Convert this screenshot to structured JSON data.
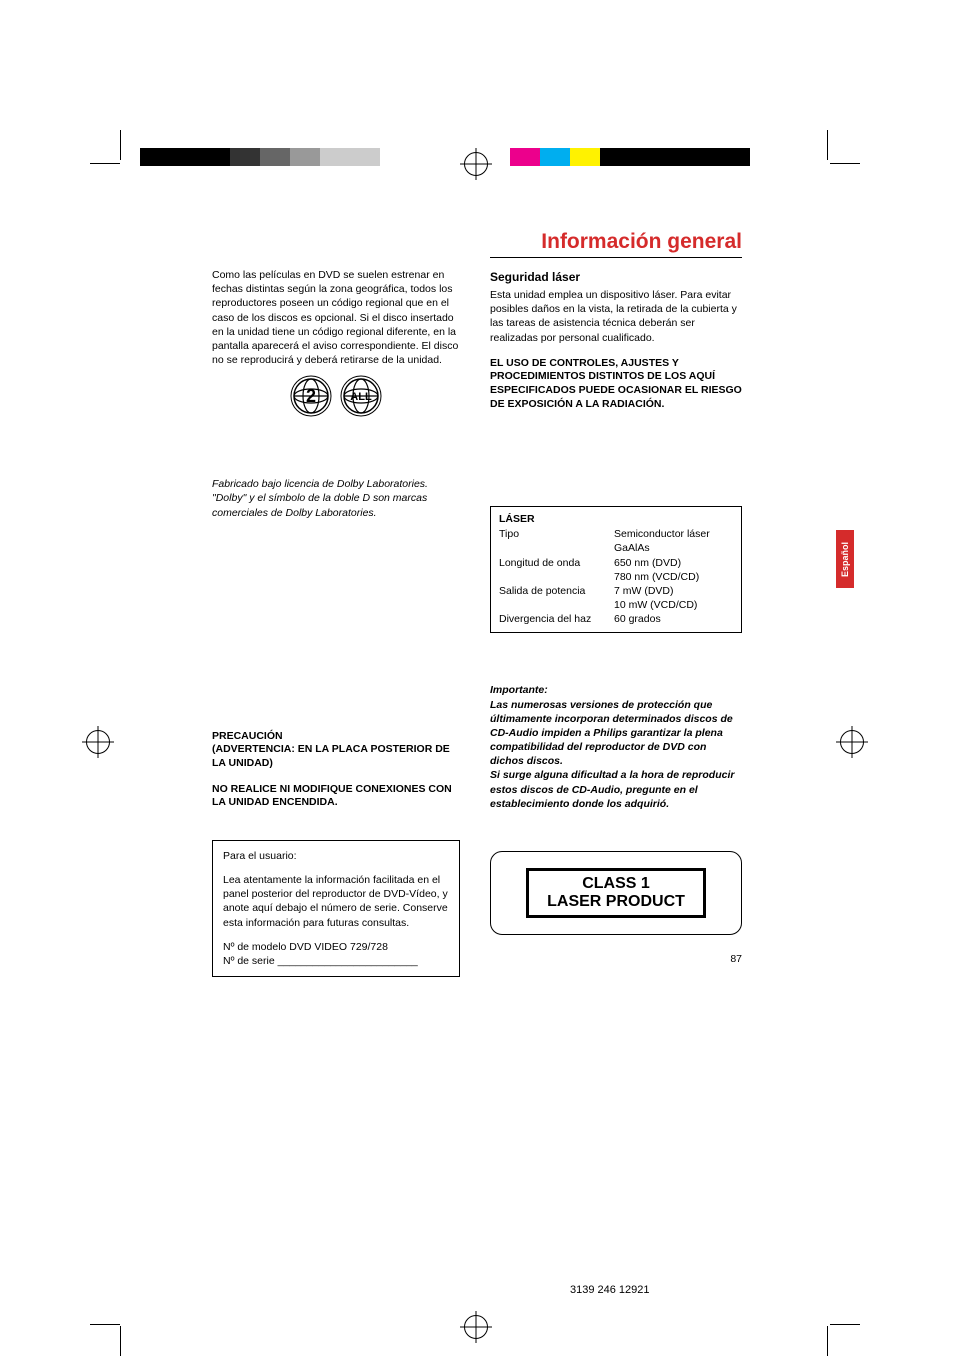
{
  "title": "Información general",
  "colorbar_left": [
    "#000000",
    "#000000",
    "#000000",
    "#333333",
    "#666666",
    "#999999",
    "#cccccc",
    "#cccccc",
    "#ffffff"
  ],
  "colorbar_right": [
    "#ec008c",
    "#00aeef",
    "#fff200",
    "#000000",
    "#000000",
    "#000000",
    "#000000",
    "#000000"
  ],
  "left": {
    "intro": "Como las películas en DVD se suelen estrenar en fechas distintas según la zona geográfica, todos los reproductores poseen un código regional que en el caso de  los discos es opcional. Si el disco insertado en la unidad tiene un código regional diferente, en la pantalla aparecerá el aviso correspondiente. El disco no se reproducirá y deberá retirarse de la unidad.",
    "region_badge_main": "2",
    "region_badge_all": "ALL",
    "licence": "Fabricado bajo licencia de Dolby Laboratories. \"Dolby\" y el símbolo de la doble D son marcas comerciales de Dolby Laboratories.",
    "caution_heading": "PRECAUCIÓN",
    "caution_sub": "(ADVERTENCIA: EN LA PLACA POSTERIOR DE LA UNIDAD)",
    "caution_body": "NO REALICE NI MODIFIQUE CONEXIONES CON LA UNIDAD ENCENDIDA.",
    "user_heading": "Para el usuario:",
    "user_body": "Lea atentamente la información facilitada en el panel posterior del reproductor de DVD-Vídeo, y anote aquí debajo el número de serie. Conserve esta información para futuras consultas.",
    "model_label": "Nº de modelo",
    "model_value": "DVD VIDEO 729/728",
    "serial_label": "Nº de serie",
    "serial_line": "________________________"
  },
  "right": {
    "heading": "Seguridad láser",
    "body": "Esta unidad emplea un dispositivo láser. Para evitar posibles daños en la vista, la retirada de la cubierta y las tareas de asistencia técnica deberán ser realizadas por personal cualificado.",
    "warning": "EL USO DE CONTROLES, AJUSTES Y PROCEDIMIENTOS DISTINTOS DE LOS AQUÍ ESPECIFICADOS PUEDE OCASIONAR EL RIESGO DE EXPOSICIÓN A LA RADIACIÓN.",
    "side_tab": "Español",
    "laser_table": {
      "title": "LÁSER",
      "rows": [
        {
          "k": "Tipo",
          "v": "Semiconductor láser"
        },
        {
          "k": "",
          "v": "GaAlAs"
        },
        {
          "k": "Longitud de onda",
          "v": "650 nm (DVD)"
        },
        {
          "k": "",
          "v": "780 nm (VCD/CD)"
        },
        {
          "k": "Salida de potencia",
          "v": "7 mW (DVD)"
        },
        {
          "k": "",
          "v": "10 mW (VCD/CD)"
        },
        {
          "k": "Divergencia del haz",
          "v": "60 grados"
        }
      ]
    },
    "important_heading": "Importante:",
    "important_body1": "Las numerosas versiones de protección que últimamente incorporan determinados discos de CD-Audio impiden a Philips garantizar la plena compatibilidad del reproductor de DVD con dichos discos.",
    "important_body2": "Si surge alguna dificultad a la hora de reproducir estos discos de CD-Audio, pregunte en el establecimiento donde los adquirió.",
    "class1_line1": "CLASS 1",
    "class1_line2": "LASER PRODUCT"
  },
  "page_number": "87",
  "footer_code": "3139 246 12921"
}
